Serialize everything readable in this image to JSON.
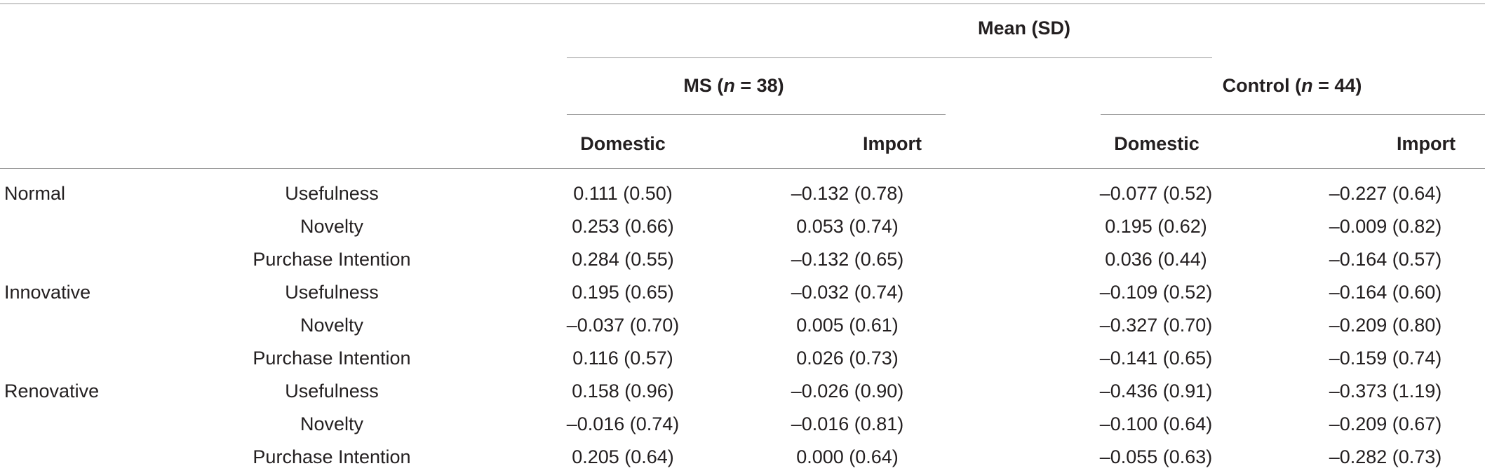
{
  "header": {
    "spanner": "Mean (SD)",
    "groups": [
      {
        "label": "MS",
        "n_label": "n",
        "n_value": " = 38"
      },
      {
        "label": "Control",
        "n_label": "n",
        "n_value": " = 44"
      }
    ],
    "subcolumns": [
      "Domestic",
      "Import",
      "Domestic",
      "Import"
    ]
  },
  "rows": [
    {
      "category": "Normal",
      "measure": "Usefulness",
      "values": [
        "0.111 (0.50)",
        "–0.132 (0.78)",
        "–0.077 (0.52)",
        "–0.227 (0.64)"
      ]
    },
    {
      "category": "",
      "measure": "Novelty",
      "values": [
        "0.253 (0.66)",
        "0.053 (0.74)",
        "0.195 (0.62)",
        "–0.009 (0.82)"
      ]
    },
    {
      "category": "",
      "measure": "Purchase Intention",
      "values": [
        "0.284 (0.55)",
        "–0.132 (0.65)",
        "0.036 (0.44)",
        "–0.164 (0.57)"
      ]
    },
    {
      "category": "Innovative",
      "measure": "Usefulness",
      "values": [
        "0.195 (0.65)",
        "–0.032 (0.74)",
        "–0.109 (0.52)",
        "–0.164 (0.60)"
      ]
    },
    {
      "category": "",
      "measure": "Novelty",
      "values": [
        "–0.037 (0.70)",
        "0.005 (0.61)",
        "–0.327 (0.70)",
        "–0.209 (0.80)"
      ]
    },
    {
      "category": "",
      "measure": "Purchase Intention",
      "values": [
        "0.116 (0.57)",
        "0.026 (0.73)",
        "–0.141 (0.65)",
        "–0.159 (0.74)"
      ]
    },
    {
      "category": "Renovative",
      "measure": "Usefulness",
      "values": [
        "0.158 (0.96)",
        "–0.026 (0.90)",
        "–0.436 (0.91)",
        "–0.373 (1.19)"
      ]
    },
    {
      "category": "",
      "measure": "Novelty",
      "values": [
        "–0.016 (0.74)",
        "–0.016 (0.81)",
        "–0.100 (0.64)",
        "–0.209 (0.67)"
      ]
    },
    {
      "category": "",
      "measure": "Purchase Intention",
      "values": [
        "0.205 (0.64)",
        "0.000 (0.64)",
        "–0.055 (0.63)",
        "–0.282 (0.73)"
      ]
    }
  ]
}
